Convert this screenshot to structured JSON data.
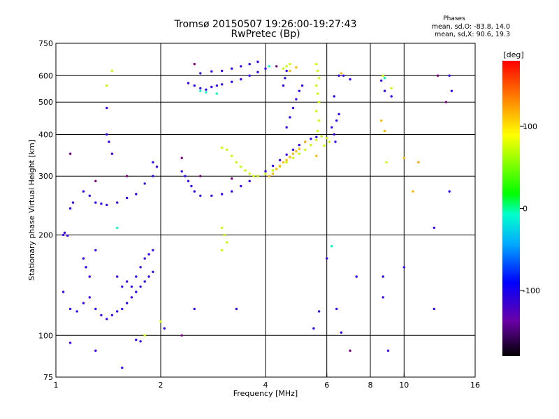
{
  "header": {
    "title_line1": "Tromsø 20150507 19:26:00-19:27:43",
    "title_line2": "RwPretec (Bp)",
    "stats_heading": "Phases",
    "stats_o": "mean, sd,O: -83.8, 14.0",
    "stats_x": "mean, sd,X:  90.6, 19.3"
  },
  "chart_data": {
    "type": "scatter",
    "title": "Tromsø 20150507 19:26:00-19:27:43",
    "subtitle": "RwPretec (Bp)",
    "xlabel": "Frequency [MHz]",
    "ylabel": "Stationary phase Virtual Height [km]",
    "x_scale": "log",
    "y_scale": "log",
    "xlim": [
      1,
      16
    ],
    "ylim": [
      75,
      750
    ],
    "x_ticks": [
      1,
      2,
      4,
      6,
      8,
      10,
      16
    ],
    "x_tick_labels": [
      "1",
      "2",
      "4",
      "6",
      "8",
      "10",
      "16"
    ],
    "y_ticks": [
      75,
      100,
      200,
      300,
      400,
      500,
      600,
      750
    ],
    "y_tick_labels": [
      "75",
      "100",
      "200",
      "300",
      "400",
      "500",
      "600",
      "750"
    ],
    "grid": true,
    "colorbar": {
      "label": "[deg]",
      "range": [
        -180,
        180
      ],
      "ticks": [
        100,
        0,
        -100
      ],
      "tick_labels": [
        "100",
        "0",
        "-100"
      ]
    },
    "series": [
      {
        "name": "",
        "color_phase": -105,
        "points": [
          [
            1.05,
            200
          ],
          [
            1.06,
            203
          ],
          [
            1.08,
            199
          ],
          [
            1.1,
            240
          ],
          [
            1.12,
            250
          ],
          [
            1.2,
            270
          ],
          [
            1.25,
            262
          ],
          [
            1.3,
            250
          ],
          [
            1.35,
            248
          ],
          [
            1.4,
            246
          ],
          [
            1.5,
            250
          ],
          [
            1.6,
            258
          ],
          [
            1.7,
            265
          ],
          [
            1.8,
            285
          ],
          [
            1.9,
            300
          ],
          [
            1.2,
            170
          ],
          [
            1.22,
            160
          ],
          [
            1.25,
            150
          ],
          [
            1.3,
            180
          ],
          [
            1.5,
            150
          ],
          [
            1.55,
            140
          ],
          [
            1.6,
            145
          ],
          [
            1.65,
            140
          ],
          [
            1.7,
            150
          ],
          [
            1.75,
            160
          ],
          [
            1.8,
            170
          ],
          [
            1.85,
            175
          ],
          [
            1.9,
            180
          ],
          [
            1.05,
            135
          ],
          [
            1.1,
            120
          ],
          [
            1.15,
            118
          ],
          [
            1.2,
            125
          ],
          [
            1.25,
            130
          ],
          [
            1.3,
            120
          ],
          [
            1.35,
            115
          ],
          [
            1.4,
            112
          ],
          [
            1.45,
            115
          ],
          [
            1.5,
            118
          ],
          [
            1.55,
            120
          ],
          [
            1.6,
            125
          ],
          [
            1.65,
            130
          ],
          [
            1.7,
            135
          ],
          [
            1.75,
            140
          ],
          [
            1.8,
            145
          ],
          [
            1.85,
            150
          ],
          [
            1.9,
            155
          ],
          [
            1.4,
            480
          ],
          [
            1.4,
            400
          ],
          [
            1.42,
            380
          ],
          [
            1.45,
            350
          ],
          [
            1.9,
            330
          ],
          [
            1.95,
            320
          ],
          [
            2.3,
            310
          ],
          [
            2.35,
            300
          ],
          [
            2.4,
            290
          ],
          [
            2.45,
            280
          ],
          [
            2.5,
            270
          ],
          [
            2.6,
            262
          ],
          [
            2.8,
            262
          ],
          [
            3.0,
            265
          ],
          [
            3.2,
            270
          ],
          [
            3.4,
            280
          ],
          [
            3.6,
            290
          ],
          [
            3.8,
            300
          ],
          [
            4.0,
            310
          ],
          [
            4.2,
            322
          ],
          [
            4.4,
            335
          ],
          [
            4.6,
            348
          ],
          [
            4.8,
            360
          ],
          [
            5.0,
            372
          ],
          [
            5.2,
            380
          ],
          [
            5.4,
            388
          ],
          [
            5.6,
            393
          ],
          [
            5.8,
            395
          ],
          [
            2.4,
            570
          ],
          [
            2.5,
            560
          ],
          [
            2.6,
            550
          ],
          [
            2.7,
            545
          ],
          [
            2.8,
            555
          ],
          [
            2.9,
            560
          ],
          [
            3.0,
            565
          ],
          [
            3.2,
            575
          ],
          [
            3.4,
            585
          ],
          [
            3.6,
            600
          ],
          [
            3.8,
            615
          ],
          [
            4.0,
            630
          ],
          [
            2.6,
            610
          ],
          [
            2.8,
            618
          ],
          [
            3.0,
            620
          ],
          [
            3.2,
            630
          ],
          [
            3.4,
            640
          ],
          [
            3.6,
            650
          ],
          [
            3.8,
            660
          ],
          [
            4.6,
            420
          ],
          [
            4.7,
            450
          ],
          [
            4.8,
            480
          ],
          [
            4.9,
            510
          ],
          [
            5.0,
            540
          ],
          [
            5.1,
            560
          ],
          [
            4.5,
            560
          ],
          [
            4.55,
            590
          ],
          [
            4.6,
            620
          ],
          [
            6.2,
            420
          ],
          [
            6.3,
            400
          ],
          [
            6.35,
            380
          ],
          [
            6.4,
            440
          ],
          [
            6.5,
            460
          ],
          [
            6.3,
            520
          ],
          [
            6.5,
            600
          ],
          [
            6.7,
            600
          ],
          [
            7.0,
            585
          ],
          [
            8.6,
            580
          ],
          [
            8.8,
            540
          ],
          [
            9.2,
            520
          ],
          [
            13.5,
            600
          ],
          [
            13.7,
            540
          ],
          [
            11.0,
            330
          ],
          [
            12.2,
            120
          ],
          [
            12.2,
            210
          ],
          [
            9.0,
            90
          ],
          [
            1.1,
            95
          ],
          [
            1.3,
            90
          ],
          [
            1.55,
            80
          ],
          [
            1.7,
            97
          ],
          [
            1.75,
            96
          ],
          [
            2.05,
            105
          ],
          [
            2.5,
            120
          ],
          [
            3.3,
            120
          ],
          [
            5.5,
            105
          ],
          [
            5.7,
            118
          ],
          [
            6.0,
            170
          ],
          [
            6.4,
            120
          ],
          [
            6.6,
            102
          ],
          [
            7.3,
            150
          ],
          [
            8.7,
            130
          ],
          [
            8.7,
            150
          ],
          [
            10.0,
            160
          ],
          [
            13.5,
            270
          ]
        ]
      },
      {
        "name": "",
        "color_phase": 110,
        "points": [
          [
            3.0,
            365
          ],
          [
            3.1,
            360
          ],
          [
            3.2,
            345
          ],
          [
            3.3,
            330
          ],
          [
            3.4,
            320
          ],
          [
            3.5,
            312
          ],
          [
            3.6,
            305
          ],
          [
            3.7,
            300
          ],
          [
            3.8,
            300
          ],
          [
            4.0,
            305
          ],
          [
            4.2,
            312
          ],
          [
            4.4,
            320
          ],
          [
            4.6,
            330
          ],
          [
            4.8,
            340
          ],
          [
            5.0,
            350
          ],
          [
            5.2,
            360
          ],
          [
            5.4,
            372
          ],
          [
            5.6,
            385
          ],
          [
            5.8,
            395
          ],
          [
            4.5,
            630
          ],
          [
            4.6,
            640
          ],
          [
            4.7,
            650
          ],
          [
            5.6,
            650
          ],
          [
            5.65,
            620
          ],
          [
            5.7,
            590
          ],
          [
            5.6,
            560
          ],
          [
            5.65,
            530
          ],
          [
            5.7,
            500
          ],
          [
            5.6,
            470
          ],
          [
            5.7,
            440
          ],
          [
            5.65,
            410
          ],
          [
            3.0,
            210
          ],
          [
            3.05,
            200
          ],
          [
            3.1,
            190
          ],
          [
            3.0,
            180
          ],
          [
            1.45,
            620
          ],
          [
            1.4,
            560
          ],
          [
            1.8,
            100
          ],
          [
            2.0,
            110
          ],
          [
            6.0,
            390
          ],
          [
            6.1,
            380
          ],
          [
            5.9,
            370
          ],
          [
            8.9,
            330
          ],
          [
            9.2,
            550
          ],
          [
            8.7,
            600
          ]
        ]
      },
      {
        "name": "",
        "color_phase": 145,
        "points": [
          [
            4.1,
            300
          ],
          [
            4.2,
            305
          ],
          [
            4.3,
            315
          ],
          [
            4.4,
            322
          ],
          [
            4.5,
            330
          ],
          [
            4.6,
            335
          ],
          [
            4.7,
            342
          ],
          [
            4.8,
            350
          ],
          [
            4.9,
            356
          ],
          [
            5.0,
            362
          ],
          [
            5.2,
            380
          ],
          [
            4.7,
            620
          ],
          [
            4.9,
            635
          ],
          [
            6.6,
            610
          ],
          [
            5.6,
            345
          ],
          [
            10.0,
            340
          ],
          [
            10.6,
            270
          ],
          [
            11.0,
            330
          ],
          [
            8.6,
            440
          ],
          [
            8.8,
            410
          ]
        ]
      },
      {
        "name": "",
        "color_phase": 0,
        "points": [
          [
            2.6,
            540
          ],
          [
            2.7,
            535
          ],
          [
            2.9,
            530
          ],
          [
            1.5,
            210
          ],
          [
            4.1,
            640
          ],
          [
            6.2,
            185
          ],
          [
            8.8,
            590
          ]
        ]
      },
      {
        "name": "",
        "color_phase": -160,
        "points": [
          [
            1.1,
            350
          ],
          [
            1.3,
            290
          ],
          [
            1.6,
            300
          ],
          [
            2.3,
            340
          ],
          [
            2.6,
            300
          ],
          [
            3.2,
            295
          ],
          [
            4.3,
            640
          ],
          [
            2.5,
            650
          ],
          [
            2.3,
            100
          ],
          [
            7.0,
            90
          ],
          [
            12.5,
            600
          ],
          [
            13.2,
            500
          ]
        ]
      }
    ]
  }
}
